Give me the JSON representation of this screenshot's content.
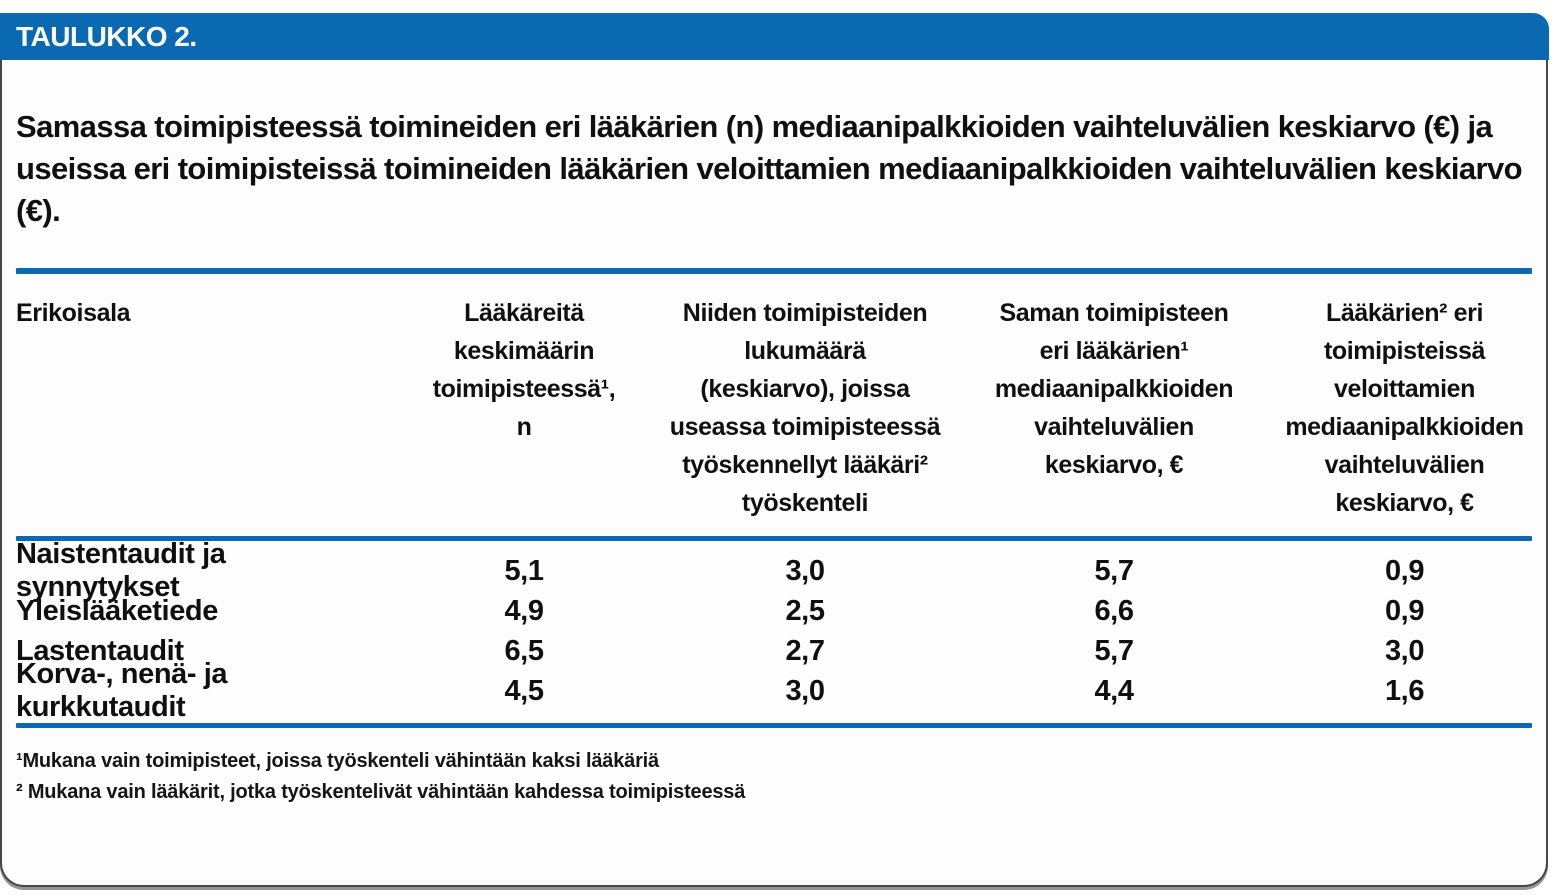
{
  "header": {
    "table_label": "TAULUKKO 2."
  },
  "title": "Samassa toimipisteessä toimineiden eri lääkärien (n) mediaanipalkkioiden vaihteluvälien keskiarvo (€) ja useissa eri toimipisteissä toimineiden lääkärien veloittamien mediaanipalkkioiden vaihteluvälien keskiarvo (€).",
  "table": {
    "columns": [
      {
        "label": "Erikoisala"
      },
      {
        "label": "Lääkäreitä\nkeskimäärin\ntoimipisteessä¹,\nn"
      },
      {
        "label": "Niiden toimipisteiden\nlukumäärä\n(keskiarvo), joissa\nuseassa toimipisteessä\ntyöskennellyt lääkäri²\ntyöskenteli"
      },
      {
        "label": "Saman toimipisteen\neri lääkärien¹\nmediaanipalkkioiden\nvaihteluvälien\nkeskiarvo, €"
      },
      {
        "label": "Lääkärien² eri\ntoimipisteissä\nveloittamien\nmediaanipalkkioiden\nvaihteluvälien\nkeskiarvo, €"
      }
    ],
    "rows": [
      {
        "erikoisala": "Naistentaudit ja synnytykset",
        "values": [
          "5,1",
          "3,0",
          "5,7",
          "0,9"
        ]
      },
      {
        "erikoisala": "Yleislääketiede",
        "values": [
          "4,9",
          "2,5",
          "6,6",
          "0,9"
        ]
      },
      {
        "erikoisala": "Lastentaudit",
        "values": [
          "6,5",
          "2,7",
          "5,7",
          "3,0"
        ]
      },
      {
        "erikoisala": "Korva-, nenä- ja kurkkutaudit",
        "values": [
          "4,5",
          "3,0",
          "4,4",
          "1,6"
        ]
      }
    ]
  },
  "footnotes": [
    "¹Mukana vain toimipisteet, joissa työskenteli vähintään kaksi lääkäriä",
    "² Mukana vain lääkärit, jotka työskentelivät vähintään kahdessa toimipisteessä"
  ],
  "colors": {
    "accent_blue": "#0a69b0",
    "bar_text": "#ffffff",
    "body_text": "#101010",
    "card_border": "#474747"
  }
}
